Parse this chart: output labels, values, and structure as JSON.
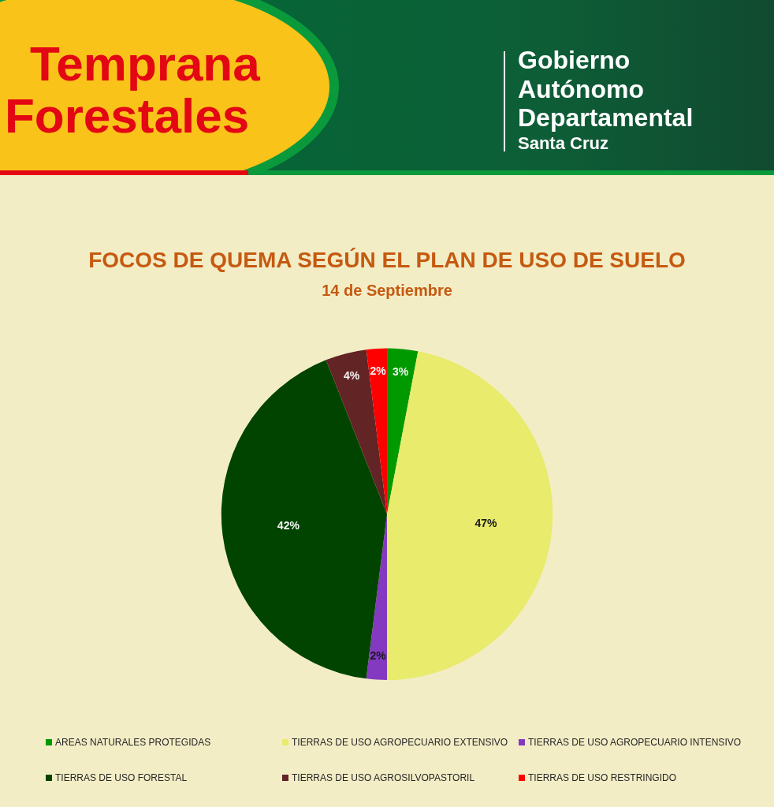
{
  "chart_data": {
    "type": "pie",
    "title": "FOCOS DE QUEMA SEGÚN EL PLAN DE USO DE SUELO",
    "subtitle": "14 de Septiembre",
    "categories": [
      "AREAS NATURALES PROTEGIDAS",
      "TIERRAS DE USO AGROPECUARIO EXTENSIVO",
      "TIERRAS DE USO AGROPECUARIO INTENSIVO",
      "TIERRAS DE USO FORESTAL",
      "TIERRAS DE USO AGROSILVOPASTORIL",
      "TIERRAS DE USO RESTRINGIDO"
    ],
    "values": [
      3,
      47,
      2,
      42,
      4,
      2
    ],
    "colors": [
      "#009900",
      "#e8eb6c",
      "#8339c0",
      "#004400",
      "#622424",
      "#ff0000"
    ],
    "value_labels": [
      "3%",
      "47%",
      "2%",
      "42%",
      "4%",
      "2%"
    ],
    "legend": "bottom",
    "annotations": [
      "Temprana",
      "Forestales",
      "Gobierno",
      "Autónomo",
      "Departamental",
      "Santa Cruz"
    ]
  }
}
